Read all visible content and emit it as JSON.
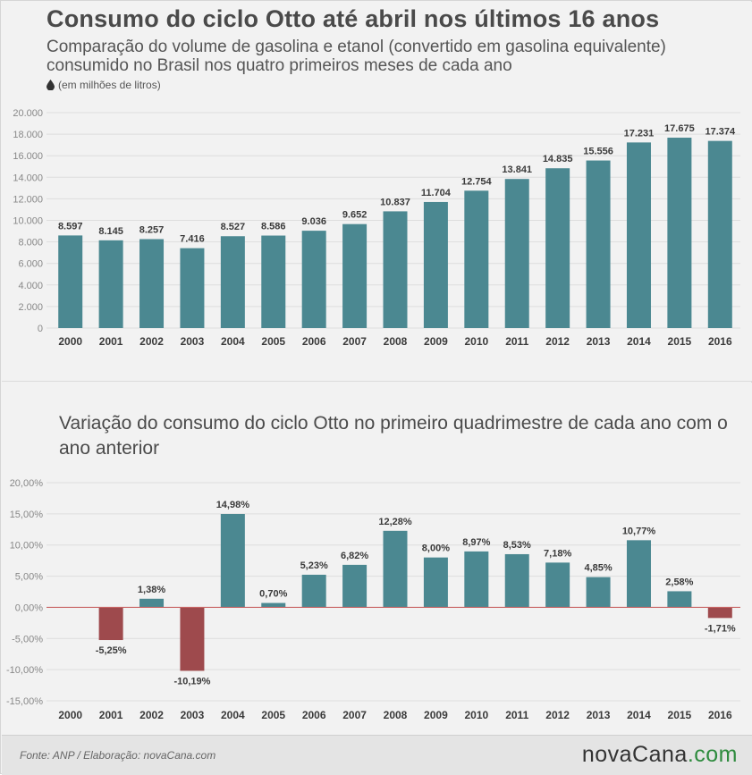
{
  "header": {
    "title": "Consumo do ciclo Otto até abril nos últimos 16 anos",
    "subtitle": "Comparação do volume de gasolina e etanol (convertido em gasolina equivalente) consumido no Brasil nos quatro primeiros meses de cada ano",
    "unit": "(em milhões de litros)"
  },
  "chart2_title": "Variação do consumo do ciclo Otto no primeiro quadrimestre de cada ano com o ano anterior",
  "footer": {
    "source": "Fonte: ANP / Elaboração: novaCana.com",
    "brand_main": "novaCana",
    "brand_suffix": ".com"
  },
  "colors": {
    "bar": "#4b8891",
    "positive": "#4b8891",
    "negative": "#9e4a4d",
    "zero_line": "#c86464",
    "grid": "#dddddd",
    "label": "#3a3a3a",
    "tick": "#888888"
  },
  "chart_data": [
    {
      "type": "bar",
      "title": "Consumo do ciclo Otto até abril nos últimos 16 anos",
      "categories": [
        "2000",
        "2001",
        "2002",
        "2003",
        "2004",
        "2005",
        "2006",
        "2007",
        "2008",
        "2009",
        "2010",
        "2011",
        "2012",
        "2013",
        "2014",
        "2015",
        "2016"
      ],
      "values": [
        8597,
        8145,
        8257,
        7416,
        8527,
        8586,
        9036,
        9652,
        10837,
        11704,
        12754,
        13841,
        14835,
        15556,
        17231,
        17675,
        17374
      ],
      "value_labels": [
        "8.597",
        "8.145",
        "8.257",
        "7.416",
        "8.527",
        "8.586",
        "9.036",
        "9.652",
        "10.837",
        "11.704",
        "12.754",
        "13.841",
        "14.835",
        "15.556",
        "17.231",
        "17.675",
        "17.374"
      ],
      "yticks": [
        0,
        2000,
        4000,
        6000,
        8000,
        10000,
        12000,
        14000,
        16000,
        18000,
        20000
      ],
      "ytick_labels": [
        "0",
        "2.000",
        "4.000",
        "6.000",
        "8.000",
        "10.000",
        "12.000",
        "14.000",
        "16.000",
        "18.000",
        "20.000"
      ],
      "ylim": [
        0,
        20000
      ],
      "grid": true
    },
    {
      "type": "bar",
      "title": "Variação do consumo do ciclo Otto no primeiro quadrimestre de cada ano com o ano anterior",
      "categories": [
        "2000",
        "2001",
        "2002",
        "2003",
        "2004",
        "2005",
        "2006",
        "2007",
        "2008",
        "2009",
        "2010",
        "2011",
        "2012",
        "2013",
        "2014",
        "2015",
        "2016"
      ],
      "values": [
        null,
        -5.25,
        1.38,
        -10.19,
        14.98,
        0.7,
        5.23,
        6.82,
        12.28,
        8.0,
        8.97,
        8.53,
        7.18,
        4.85,
        10.77,
        2.58,
        -1.71
      ],
      "value_labels": [
        "",
        "-5,25%",
        "1,38%",
        "-10,19%",
        "14,98%",
        "0,70%",
        "5,23%",
        "6,82%",
        "12,28%",
        "8,00%",
        "8,97%",
        "8,53%",
        "7,18%",
        "4,85%",
        "10,77%",
        "2,58%",
        "-1,71%"
      ],
      "yticks": [
        -15,
        -10,
        -5,
        0,
        5,
        10,
        15,
        20
      ],
      "ytick_labels": [
        "-15,00%",
        "-10,00%",
        "-5,00%",
        "0,00%",
        "5,00%",
        "10,00%",
        "15,00%",
        "20,00%"
      ],
      "ylim": [
        -15,
        20
      ],
      "grid": true
    }
  ]
}
